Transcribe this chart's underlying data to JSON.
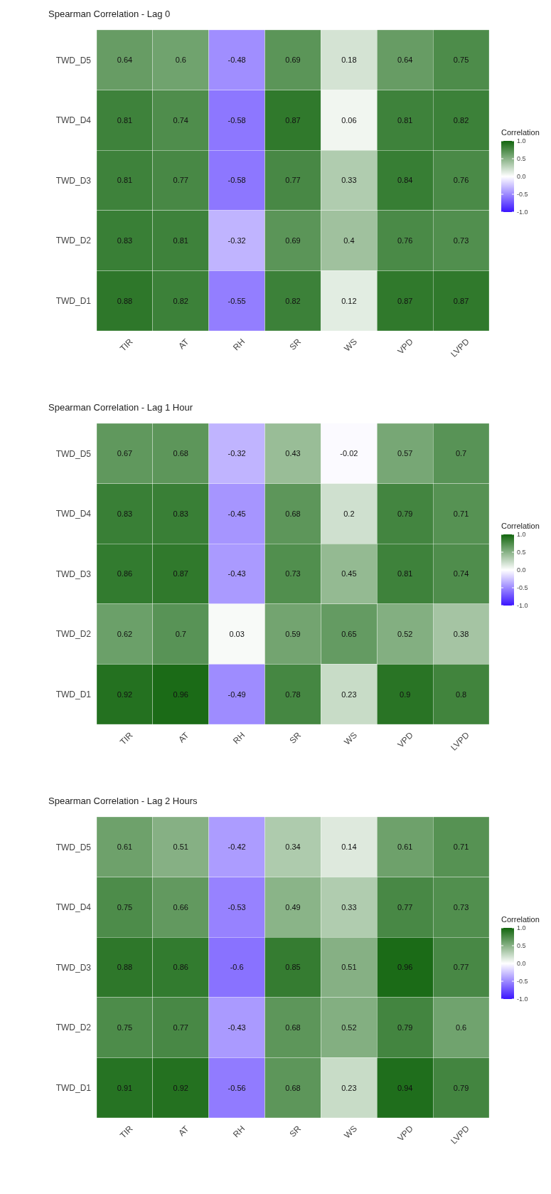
{
  "chart_data": [
    {
      "type": "heatmap",
      "title": "Spearman Correlation - Lag 0",
      "categories": [
        "TIR",
        "AT",
        "RH",
        "SR",
        "WS",
        "VPD",
        "LVPD"
      ],
      "y_categories": [
        "TWD_D5",
        "TWD_D4",
        "TWD_D3",
        "TWD_D2",
        "TWD_D1"
      ],
      "cells": [
        [
          0.64,
          0.6,
          -0.48,
          0.69,
          0.18,
          0.64,
          0.75
        ],
        [
          0.81,
          0.74,
          -0.58,
          0.87,
          0.06,
          0.81,
          0.82
        ],
        [
          0.81,
          0.77,
          -0.58,
          0.77,
          0.33,
          0.84,
          0.76
        ],
        [
          0.83,
          0.81,
          -0.32,
          0.69,
          0.4,
          0.76,
          0.73
        ],
        [
          0.88,
          0.82,
          -0.55,
          0.82,
          0.12,
          0.87,
          0.87
        ]
      ],
      "clabel": "Correlation",
      "clim": [
        -1,
        1
      ],
      "cticks": [
        {
          "value": -1,
          "label": "-1.0"
        },
        {
          "value": -0.5,
          "label": "-0.5"
        },
        {
          "value": 0,
          "label": "0.0"
        },
        {
          "value": 0.5,
          "label": "0.5"
        },
        {
          "value": 1,
          "label": "1.0"
        }
      ],
      "data_labels": true
    },
    {
      "type": "heatmap",
      "title": "Spearman Correlation - Lag 1 Hour",
      "categories": [
        "TIR",
        "AT",
        "RH",
        "SR",
        "WS",
        "VPD",
        "LVPD"
      ],
      "y_categories": [
        "TWD_D5",
        "TWD_D4",
        "TWD_D3",
        "TWD_D2",
        "TWD_D1"
      ],
      "cells": [
        [
          0.67,
          0.68,
          -0.32,
          0.43,
          -0.02,
          0.57,
          0.7
        ],
        [
          0.83,
          0.83,
          -0.45,
          0.68,
          0.2,
          0.79,
          0.71
        ],
        [
          0.86,
          0.87,
          -0.43,
          0.73,
          0.45,
          0.81,
          0.74
        ],
        [
          0.62,
          0.7,
          0.03,
          0.59,
          0.65,
          0.52,
          0.38
        ],
        [
          0.92,
          0.96,
          -0.49,
          0.78,
          0.23,
          0.9,
          0.8
        ]
      ],
      "clabel": "Correlation",
      "clim": [
        -1,
        1
      ],
      "cticks": [
        {
          "value": -1,
          "label": "-1.0"
        },
        {
          "value": -0.5,
          "label": "-0.5"
        },
        {
          "value": 0,
          "label": "0.0"
        },
        {
          "value": 0.5,
          "label": "0.5"
        },
        {
          "value": 1,
          "label": "1.0"
        }
      ],
      "data_labels": true
    },
    {
      "type": "heatmap",
      "title": "Spearman Correlation - Lag 2 Hours",
      "categories": [
        "TIR",
        "AT",
        "RH",
        "SR",
        "WS",
        "VPD",
        "LVPD"
      ],
      "y_categories": [
        "TWD_D5",
        "TWD_D4",
        "TWD_D3",
        "TWD_D2",
        "TWD_D1"
      ],
      "cells": [
        [
          0.61,
          0.51,
          -0.42,
          0.34,
          0.14,
          0.61,
          0.71
        ],
        [
          0.75,
          0.66,
          -0.53,
          0.49,
          0.33,
          0.77,
          0.73
        ],
        [
          0.88,
          0.86,
          -0.6,
          0.85,
          0.51,
          0.96,
          0.77
        ],
        [
          0.75,
          0.77,
          -0.43,
          0.68,
          0.52,
          0.79,
          0.6
        ],
        [
          0.91,
          0.92,
          -0.56,
          0.68,
          0.23,
          0.94,
          0.79
        ]
      ],
      "clabel": "Correlation",
      "clim": [
        -1,
        1
      ],
      "cticks": [
        {
          "value": -1,
          "label": "-1.0"
        },
        {
          "value": -0.5,
          "label": "-0.5"
        },
        {
          "value": 0,
          "label": "0.0"
        },
        {
          "value": 0.5,
          "label": "0.5"
        },
        {
          "value": 1,
          "label": "1.0"
        }
      ],
      "data_labels": true
    }
  ]
}
